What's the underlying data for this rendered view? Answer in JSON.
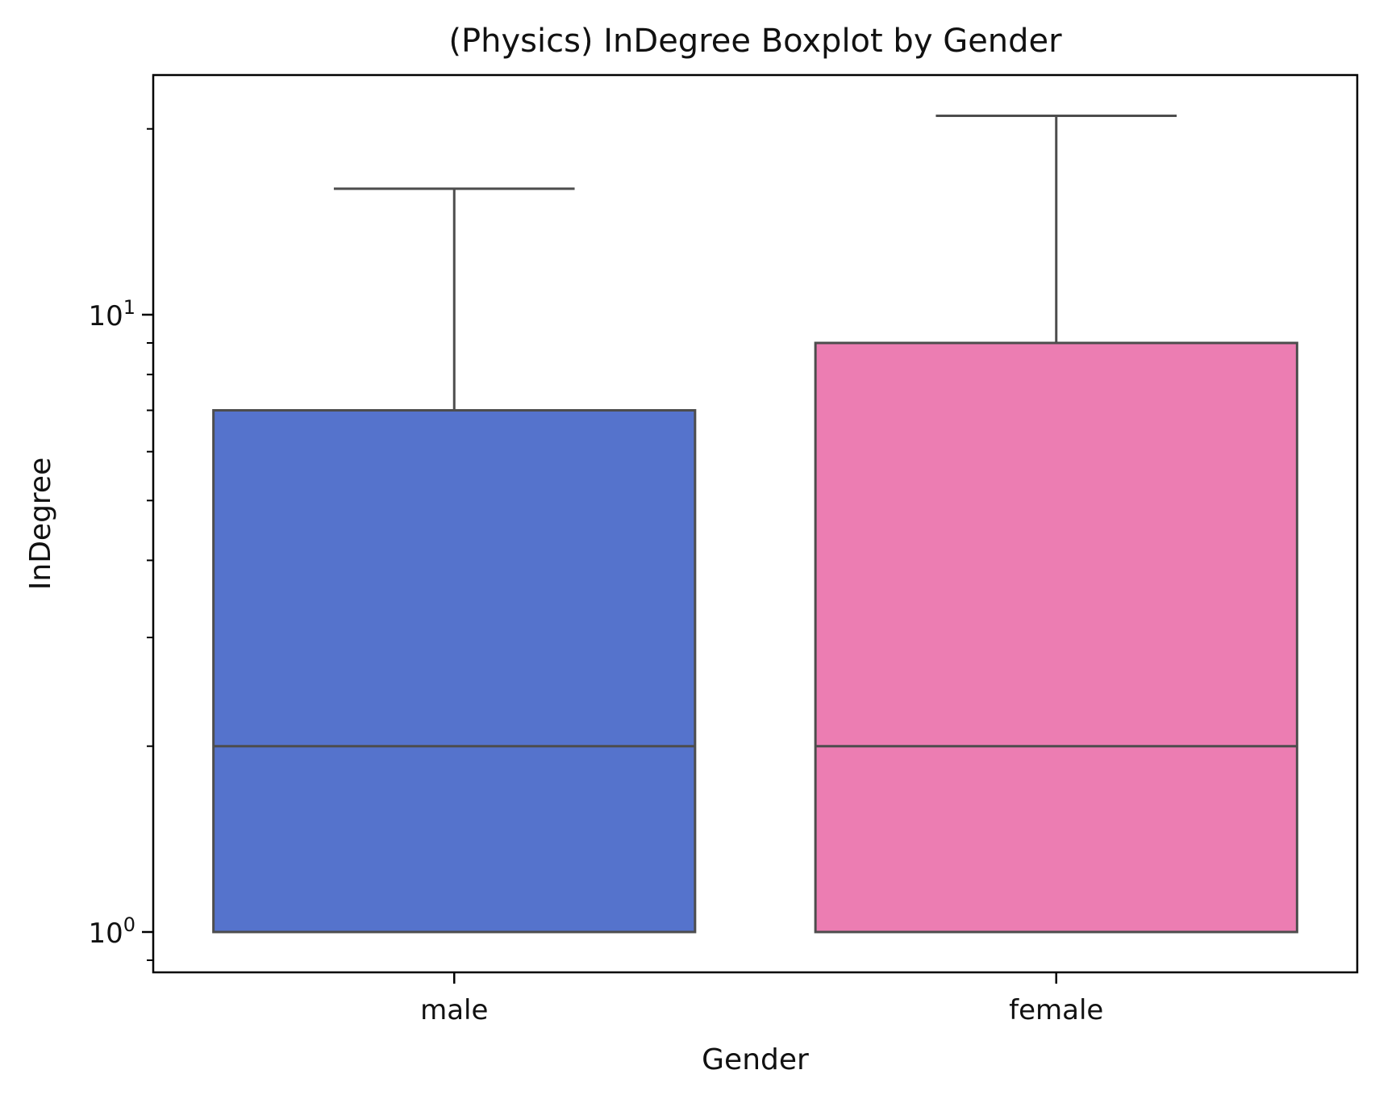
{
  "chart_data": {
    "type": "boxplot",
    "title": "(Physics) InDegree Boxplot by Gender",
    "xlabel": "Gender",
    "ylabel": "InDegree",
    "yscale": "log",
    "ylim": [
      0.9,
      25
    ],
    "y_major_ticks": [
      {
        "value": 1,
        "base": "10",
        "exp": "0"
      },
      {
        "value": 10,
        "base": "10",
        "exp": "1"
      }
    ],
    "y_minor_ticks": [
      0.9,
      2,
      3,
      4,
      5,
      6,
      7,
      8,
      9,
      20
    ],
    "categories": [
      "male",
      "female"
    ],
    "series": [
      {
        "category": "male",
        "whisker_low": 1,
        "q1": 1,
        "median": 2,
        "q3": 7,
        "whisker_high": 16,
        "color": "#5573cc"
      },
      {
        "category": "female",
        "whisker_low": 1,
        "q1": 1,
        "median": 2,
        "q3": 9,
        "whisker_high": 21,
        "color": "#ec7db2"
      }
    ],
    "line_color": "#4d4d4d",
    "grid": false,
    "legend": "none"
  }
}
